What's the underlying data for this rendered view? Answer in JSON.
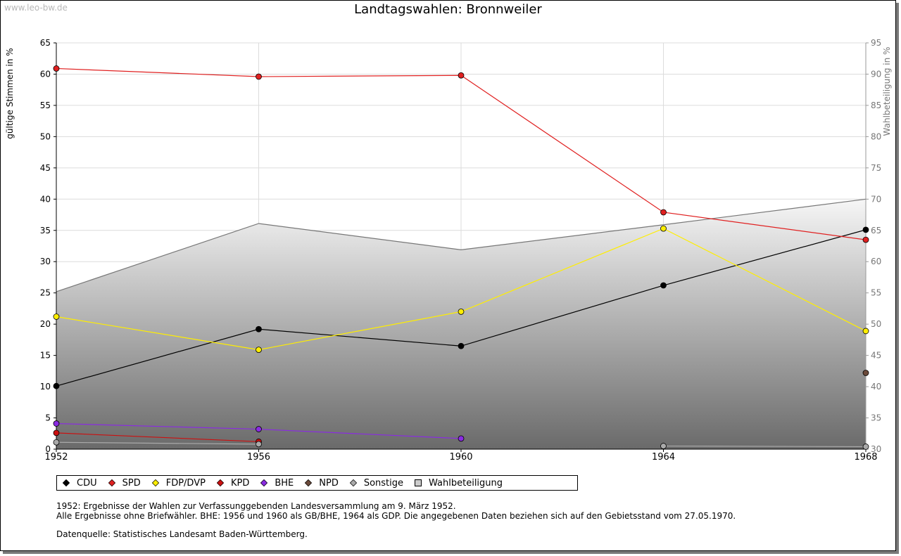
{
  "watermark": "www.leo-bw.de",
  "chart_data": {
    "type": "line",
    "title": "Landtagswahlen: Bronnweiler",
    "ylabel": "gültige Stimmen in %",
    "ylabel_right": "Wahlbeteiligung in %",
    "x": [
      "1952",
      "1956",
      "1960",
      "1964",
      "1968"
    ],
    "ylim": [
      0,
      65
    ],
    "yticks": [
      0,
      5,
      10,
      15,
      20,
      25,
      30,
      35,
      40,
      45,
      50,
      55,
      60,
      65
    ],
    "ylim_right": [
      30,
      95
    ],
    "yticks_right": [
      30,
      35,
      40,
      45,
      50,
      55,
      60,
      65,
      70,
      75,
      80,
      85,
      90,
      95
    ],
    "grid": true,
    "legend_position": "bottom",
    "series": [
      {
        "name": "CDU",
        "color": "#000000",
        "values": [
          10.1,
          19.2,
          16.5,
          26.2,
          35.1
        ]
      },
      {
        "name": "SPD",
        "color": "#e02020",
        "values": [
          60.9,
          59.6,
          59.8,
          37.9,
          33.5
        ]
      },
      {
        "name": "FDP/DVP",
        "color": "#ffee00",
        "values": [
          21.2,
          15.9,
          22.0,
          35.3,
          18.9
        ]
      },
      {
        "name": "KPD",
        "color": "#cc1010",
        "values": [
          2.6,
          1.2,
          null,
          null,
          null
        ]
      },
      {
        "name": "BHE",
        "color": "#8a2be2",
        "values": [
          4.1,
          3.2,
          1.7,
          null,
          null
        ]
      },
      {
        "name": "NPD",
        "color": "#6b4a3a",
        "values": [
          null,
          null,
          null,
          null,
          12.2
        ]
      },
      {
        "name": "Sonstige",
        "color": "#aaaaaa",
        "values": [
          1.1,
          0.8,
          null,
          0.5,
          0.4
        ]
      },
      {
        "name": "Wahlbeteiligung",
        "color": "#bbbbbb",
        "axis": "right",
        "type": "area",
        "values": [
          55.2,
          66.1,
          61.9,
          65.9,
          70.0
        ]
      }
    ]
  },
  "notes": {
    "line1": "1952: Ergebnisse der Wahlen zur Verfassunggebenden Landesversammlung am 9. März 1952.",
    "line2": "Alle Ergebnisse ohne Briefwähler. BHE: 1956 und 1960 als GB/BHE, 1964 als GDP. Die angegebenen Daten beziehen sich auf den Gebietsstand vom 27.05.1970.",
    "line3": "Datenquelle: Statistisches Landesamt Baden-Württemberg."
  }
}
